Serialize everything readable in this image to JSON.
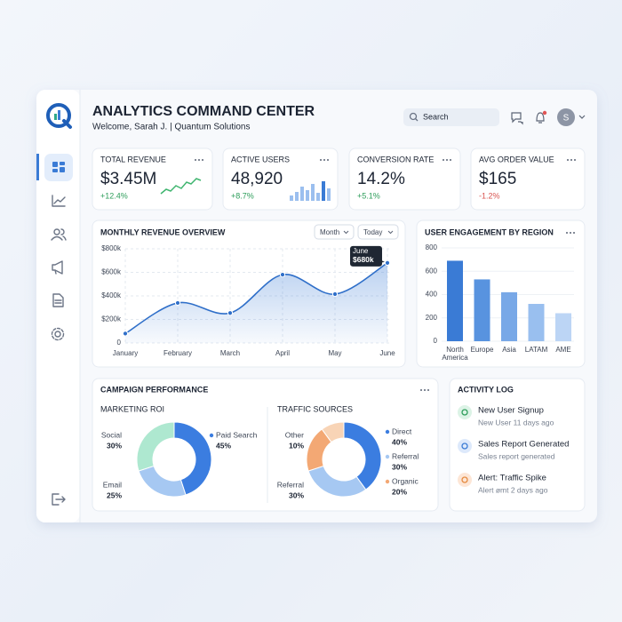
{
  "header": {
    "title": "ANALYTICS COMMAND CENTER",
    "subtitle": "Welcome, Sarah J. | Quantum Solutions",
    "search": "Search",
    "avatar": "S"
  },
  "kpis": [
    {
      "label": "TOTAL REVENUE",
      "value": "$3.45M",
      "change": "+12.4%"
    },
    {
      "label": "ACTIVE USERS",
      "value": "48,920",
      "change": "+8.7%"
    },
    {
      "label": "CONVERSION RATE",
      "value": "14.2%",
      "change": "+5.1%"
    },
    {
      "label": "AVG ORDER VALUE",
      "value": "$165",
      "change": "-1.2%"
    }
  ],
  "revenue_chart": {
    "type": "line",
    "title": "MONTHLY REVENUE OVERVIEW",
    "controls": [
      "Month",
      "Today"
    ],
    "categories": [
      "January",
      "February",
      "March",
      "April",
      "May",
      "June"
    ],
    "values": [
      80,
      340,
      255,
      580,
      415,
      680
    ],
    "color": "#2f6fc9",
    "ylim": [
      0,
      800
    ],
    "yticks": [
      0,
      {
        "value": 200,
        "label": "$200k"
      },
      {
        "value": 400,
        "label": "$400k"
      },
      {
        "value": 600,
        "label": "$600k"
      },
      {
        "value": 800,
        "label": "$800k"
      }
    ],
    "grid": true,
    "tooltip": {
      "title": "June",
      "text": "$680k"
    }
  },
  "region_chart": {
    "type": "bar",
    "title": "USER ENGAGEMENT BY REGION",
    "categories": [
      "North America",
      "Europe",
      "Asia",
      "LATAM",
      "AME"
    ],
    "values": [
      690,
      530,
      420,
      320,
      240
    ],
    "colors": [
      "#3a7bd5",
      "#5893df",
      "#78a8e7",
      "#99bfef",
      "#bcd5f5"
    ],
    "ylim": [
      0,
      800
    ],
    "yticks": [
      0,
      200,
      400,
      600,
      800
    ]
  },
  "campaign": {
    "title": "CAMPAIGN PERFORMANCE",
    "charts": [
      {
        "type": "donut",
        "title": "MARKETING ROI",
        "categories": [
          "Paid Search",
          "Email",
          "Social"
        ],
        "values": [
          45,
          25,
          30
        ],
        "value_labels": [
          "45%",
          "25%",
          "30%"
        ],
        "colors": [
          "#3b7de0",
          "#a6c8f2",
          "#aee8d0"
        ]
      },
      {
        "type": "donut",
        "title": "TRAFFIC SOURCES",
        "categories": [
          "Direct",
          "Referral",
          "Organic",
          "Other"
        ],
        "values": [
          40,
          30,
          20,
          10
        ],
        "value_labels": [
          "40%",
          "30%",
          "20%",
          "10%"
        ],
        "colors": [
          "#3b7de0",
          "#a6c8f2",
          "#f3a874",
          "#f8d4b6"
        ],
        "extra_labels": [
          {
            "name": "Referral",
            "label": "30%"
          }
        ]
      }
    ]
  },
  "activity": {
    "title": "ACTIVITY LOG",
    "items": [
      {
        "title": "New User Signup",
        "detail": "New User 11 days ago"
      },
      {
        "title": "Sales Report Generated",
        "detail": "Sales report generated"
      },
      {
        "title": "Alert: Traffic Spike",
        "detail": "Alert ømt 2 days ago"
      }
    ]
  }
}
